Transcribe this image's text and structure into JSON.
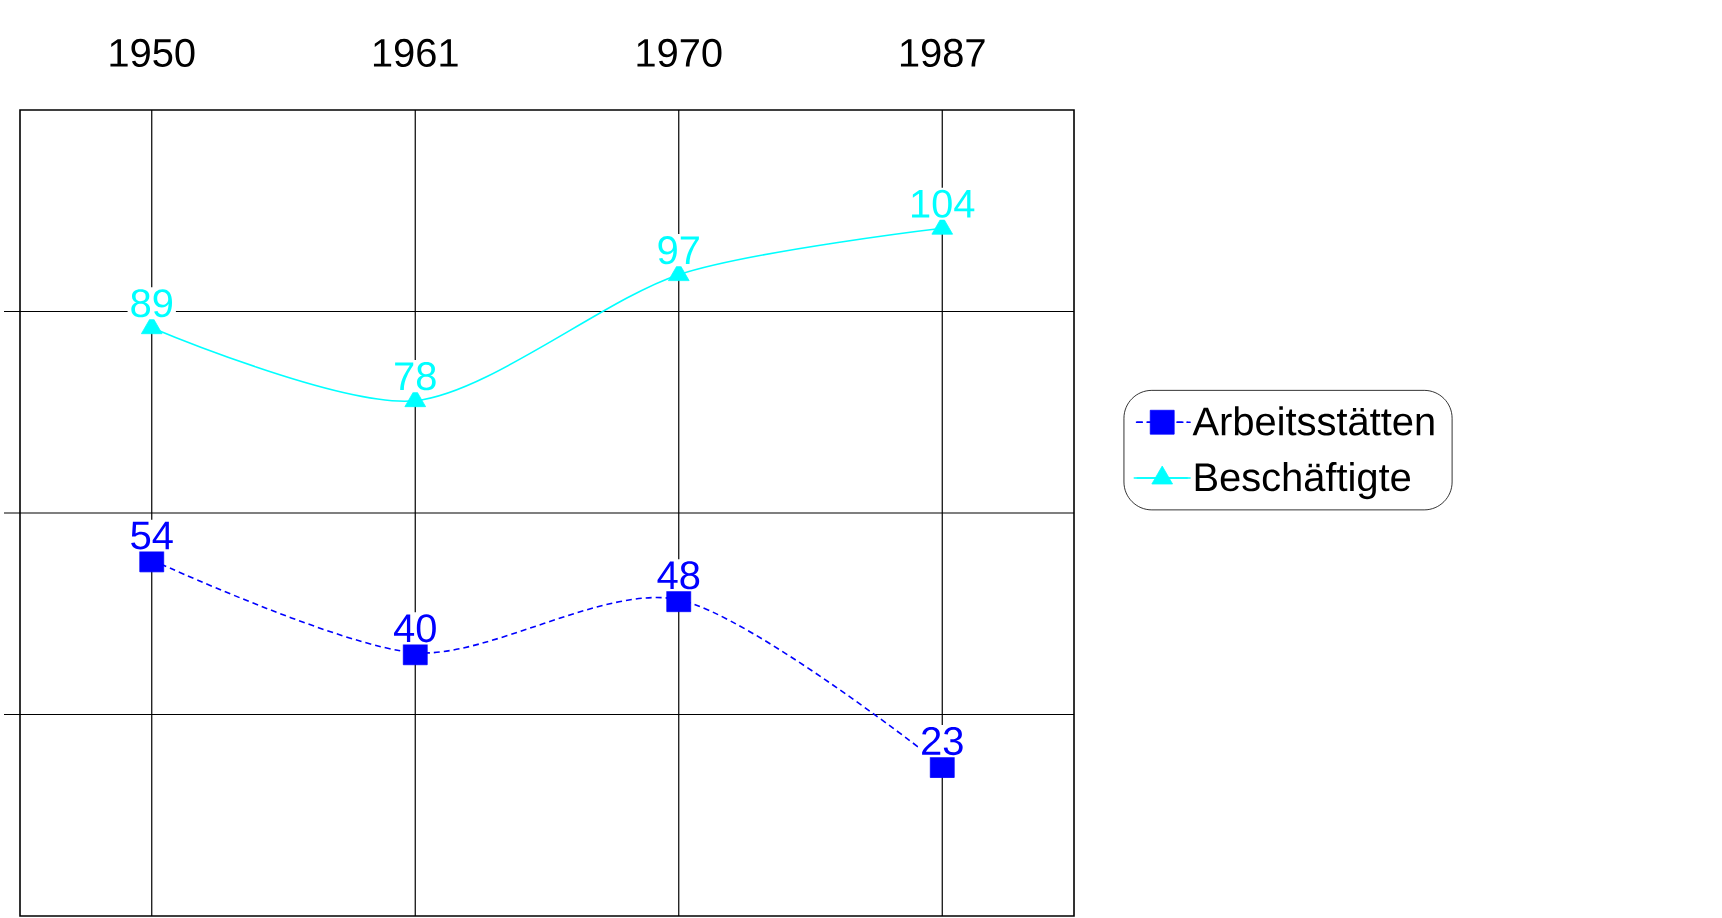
{
  "chart_data": {
    "type": "line",
    "categories": [
      "1950",
      "1961",
      "1970",
      "1987"
    ],
    "series": [
      {
        "name": "Arbeitsstätten",
        "color": "#0000ff",
        "marker": "square",
        "line_style": "dashed",
        "values": [
          54,
          40,
          48,
          23
        ]
      },
      {
        "name": "Beschäftigte",
        "color": "#00ffff",
        "marker": "triangle",
        "line_style": "solid",
        "values": [
          89,
          78,
          97,
          104
        ]
      }
    ],
    "tick_labels": "x",
    "grid": true,
    "data_labels": true,
    "legend": "right"
  }
}
